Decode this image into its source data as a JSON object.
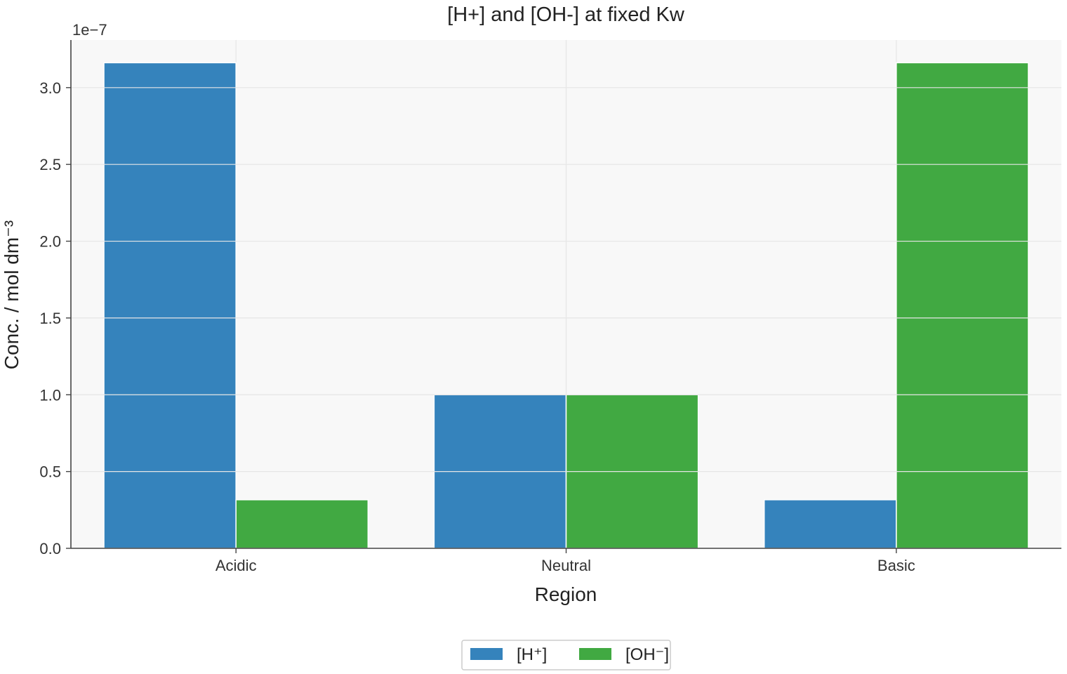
{
  "chart_data": {
    "type": "bar",
    "title": "[H+] and [OH-] at fixed Kw",
    "xlabel": "Region",
    "ylabel": "Conc. / mol dm⁻³",
    "offset_text": "1e−7",
    "categories": [
      "Acidic",
      "Neutral",
      "Basic"
    ],
    "series": [
      {
        "name": "[H⁺]",
        "values": [
          3.162e-07,
          1e-07,
          3.162e-08
        ],
        "color": "#3583bc"
      },
      {
        "name": "[OH⁻]",
        "values": [
          3.162e-08,
          1e-07,
          3.162e-07
        ],
        "color": "#41a942"
      }
    ],
    "ylim": [
      0,
      3.31e-07
    ],
    "y_ticks": [
      0,
      0.5,
      1.0,
      1.5,
      2.0,
      2.5,
      3.0
    ],
    "y_tick_labels": [
      "0.0",
      "0.5",
      "1.0",
      "1.5",
      "2.0",
      "2.5",
      "3.0"
    ],
    "y_scale_factor": 1e-07,
    "grid": true,
    "legend_position": "bottom-center",
    "plot_background": "#f8f8f8",
    "gridline_color": "#e6e6e6",
    "axis_color": "#444444"
  }
}
